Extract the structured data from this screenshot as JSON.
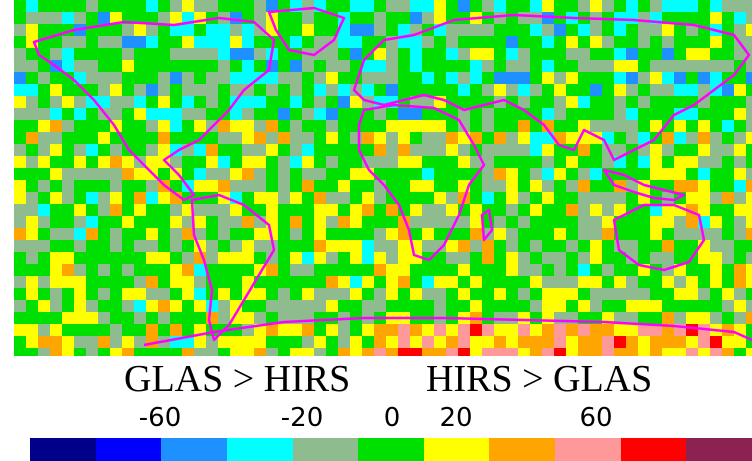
{
  "map": {
    "palette": [
      "#00008b",
      "#0000ff",
      "#1e90ff",
      "#00ffff",
      "#8fbc8f",
      "#00e000",
      "#ffff00",
      "#ffa500",
      "#ff9999",
      "#ff0000",
      "#8b2252"
    ],
    "coastline_color": "#ff00ff"
  },
  "labels": {
    "left": "GLAS > HIRS",
    "right": "HIRS > GLAS"
  },
  "colorbar": {
    "ticks": [
      "-60",
      "-20",
      "0",
      "20",
      "60"
    ],
    "colors": [
      "#00008b",
      "#0000ff",
      "#1e90ff",
      "#00ffff",
      "#8fbc8f",
      "#00e000",
      "#ffff00",
      "#ffa500",
      "#ff9999",
      "#ff0000",
      "#8b2252"
    ]
  }
}
